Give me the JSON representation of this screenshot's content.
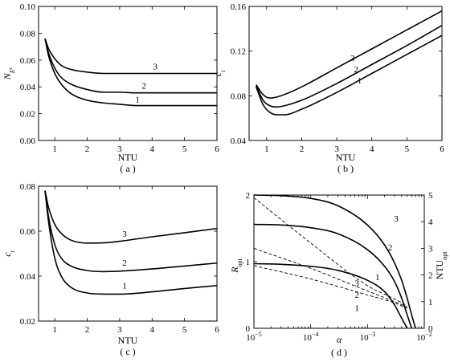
{
  "chart_data": [
    {
      "panel": "(a)",
      "type": "line",
      "xlabel": "NTU",
      "ylabel": "N",
      "ylabel_sub": "E",
      "ylabel_subsub": "c",
      "xlim": [
        0.5,
        6
      ],
      "ylim": [
        0,
        0.1
      ],
      "xticks": [
        1,
        2,
        3,
        4,
        5,
        6
      ],
      "yticks": [
        0,
        0.02,
        0.04,
        0.06,
        0.08,
        0.1
      ],
      "ytick_labels": [
        "0.00",
        "0.02",
        "0.04",
        "0.06",
        "0.08",
        "0.10"
      ],
      "series": [
        {
          "name": "1",
          "x": [
            0.7,
            0.8,
            1.0,
            1.2,
            1.5,
            2.0,
            2.5,
            3.0,
            3.5,
            4.0,
            5.0,
            6.0
          ],
          "y": [
            0.076,
            0.064,
            0.05,
            0.042,
            0.035,
            0.03,
            0.028,
            0.027,
            0.026,
            0.026,
            0.026,
            0.026
          ]
        },
        {
          "name": "2",
          "x": [
            0.7,
            0.8,
            1.0,
            1.2,
            1.5,
            2.0,
            2.5,
            3.0,
            3.5,
            4.0,
            5.0,
            6.0
          ],
          "y": [
            0.076,
            0.066,
            0.054,
            0.047,
            0.042,
            0.038,
            0.036,
            0.036,
            0.0355,
            0.0355,
            0.0355,
            0.0355
          ]
        },
        {
          "name": "3",
          "x": [
            0.7,
            0.8,
            1.0,
            1.2,
            1.5,
            2.0,
            2.5,
            3.0,
            3.5,
            4.0,
            5.0,
            6.0
          ],
          "y": [
            0.076,
            0.069,
            0.061,
            0.056,
            0.053,
            0.051,
            0.05,
            0.05,
            0.05,
            0.05,
            0.05,
            0.05
          ]
        }
      ],
      "curve_labels": [
        {
          "text": "1",
          "x": 3.55,
          "y": 0.0285
        },
        {
          "text": "2",
          "x": 3.75,
          "y": 0.0385
        },
        {
          "text": "3",
          "x": 4.1,
          "y": 0.053
        }
      ],
      "caption": "( a )"
    },
    {
      "panel": "(b)",
      "type": "line",
      "xlabel": "NTU",
      "ylabel": "c",
      "ylabel_sub": "t",
      "xlim": [
        0.5,
        6
      ],
      "ylim": [
        0.04,
        0.16
      ],
      "xticks": [
        1,
        2,
        3,
        4,
        5,
        6
      ],
      "yticks": [
        0.04,
        0.08,
        0.12,
        0.16
      ],
      "ytick_labels": [
        "0.04",
        "0.08",
        "0.12",
        "0.16"
      ],
      "series": [
        {
          "name": "1",
          "x": [
            0.7,
            0.9,
            1.1,
            1.3,
            1.5,
            2.0,
            3.0,
            4.0,
            5.0,
            6.0
          ],
          "y": [
            0.088,
            0.072,
            0.065,
            0.063,
            0.063,
            0.068,
            0.083,
            0.1,
            0.117,
            0.134
          ]
        },
        {
          "name": "2",
          "x": [
            0.7,
            0.9,
            1.1,
            1.3,
            1.5,
            2.0,
            3.0,
            4.0,
            5.0,
            6.0
          ],
          "y": [
            0.089,
            0.076,
            0.071,
            0.07,
            0.071,
            0.076,
            0.091,
            0.108,
            0.125,
            0.143
          ]
        },
        {
          "name": "3",
          "x": [
            0.7,
            0.9,
            1.1,
            1.3,
            1.5,
            2.0,
            3.0,
            4.0,
            5.0,
            6.0
          ],
          "y": [
            0.09,
            0.081,
            0.078,
            0.079,
            0.081,
            0.088,
            0.105,
            0.122,
            0.139,
            0.156
          ]
        }
      ],
      "curve_labels": [
        {
          "text": "1",
          "x": 3.65,
          "y": 0.091
        },
        {
          "text": "2",
          "x": 3.55,
          "y": 0.101
        },
        {
          "text": "3",
          "x": 3.45,
          "y": 0.111
        }
      ],
      "caption": "( b )"
    },
    {
      "panel": "(c)",
      "type": "line",
      "xlabel": "NTU",
      "ylabel": "c",
      "ylabel_sub": "t",
      "xlim": [
        0.5,
        6
      ],
      "ylim": [
        0.02,
        0.08
      ],
      "xticks": [
        1,
        2,
        3,
        4,
        5,
        6
      ],
      "yticks": [
        0.02,
        0.04,
        0.06,
        0.08
      ],
      "ytick_labels": [
        "0.02",
        "0.04",
        "0.06",
        "0.08"
      ],
      "series": [
        {
          "name": "1",
          "x": [
            0.7,
            0.8,
            1.0,
            1.2,
            1.5,
            2.0,
            2.5,
            3.0,
            4.0,
            5.0,
            6.0
          ],
          "y": [
            0.078,
            0.065,
            0.048,
            0.04,
            0.035,
            0.0325,
            0.032,
            0.032,
            0.033,
            0.0345,
            0.0358
          ]
        },
        {
          "name": "2",
          "x": [
            0.7,
            0.8,
            1.0,
            1.2,
            1.5,
            2.0,
            2.5,
            3.0,
            4.0,
            5.0,
            6.0
          ],
          "y": [
            0.078,
            0.067,
            0.054,
            0.048,
            0.0445,
            0.0425,
            0.042,
            0.0422,
            0.0432,
            0.0445,
            0.0458
          ]
        },
        {
          "name": "3",
          "x": [
            0.7,
            0.8,
            1.0,
            1.2,
            1.5,
            2.0,
            2.5,
            3.0,
            4.0,
            5.0,
            6.0
          ],
          "y": [
            0.078,
            0.071,
            0.063,
            0.059,
            0.056,
            0.0547,
            0.0548,
            0.0555,
            0.0575,
            0.0593,
            0.0612
          ]
        }
      ],
      "curve_labels": [
        {
          "text": "1",
          "x": 3.15,
          "y": 0.0345
        },
        {
          "text": "2",
          "x": 3.15,
          "y": 0.0447
        },
        {
          "text": "3",
          "x": 3.15,
          "y": 0.0575
        }
      ],
      "caption": "( c )"
    },
    {
      "panel": "(d)",
      "type": "line",
      "xlabel": "α",
      "xscale": "log",
      "ylabel_left": "R",
      "ylabel_left_sub": "opt",
      "ylabel_right": "NTU",
      "ylabel_right_sub": "opt",
      "xlim": [
        1e-05,
        0.01
      ],
      "ylim_left": [
        0,
        2
      ],
      "ylim_right": [
        0,
        5
      ],
      "xticks": [
        1e-05,
        0.0001,
        0.001,
        0.01
      ],
      "xtick_labels": [
        {
          "base": "10",
          "exp": "−5"
        },
        {
          "base": "10",
          "exp": "−4"
        },
        {
          "base": "10",
          "exp": "−3"
        },
        {
          "base": "10",
          "exp": "−2"
        }
      ],
      "yticks_left": [
        0,
        1,
        2
      ],
      "yticks_right": [
        0,
        1,
        2,
        3,
        4,
        5
      ],
      "series": [
        {
          "name": "1",
          "axis": "left",
          "style": "solid",
          "x": [
            1e-05,
            3e-05,
            0.0001,
            0.0003,
            0.001,
            0.002,
            0.003,
            0.004,
            0.005
          ],
          "y": [
            0.97,
            0.96,
            0.93,
            0.87,
            0.72,
            0.55,
            0.35,
            0.15,
            0.0
          ]
        },
        {
          "name": "2",
          "axis": "left",
          "style": "solid",
          "x": [
            1e-05,
            3e-05,
            0.0001,
            0.0003,
            0.001,
            0.002,
            0.003,
            0.004,
            0.005,
            0.006
          ],
          "y": [
            1.56,
            1.55,
            1.51,
            1.42,
            1.18,
            0.93,
            0.7,
            0.45,
            0.2,
            0.0
          ]
        },
        {
          "name": "3",
          "axis": "left",
          "style": "solid",
          "x": [
            1e-05,
            3e-05,
            0.0001,
            0.0003,
            0.001,
            0.002,
            0.003,
            0.004,
            0.005,
            0.006,
            0.007
          ],
          "y": [
            2.0,
            1.99,
            1.95,
            1.84,
            1.55,
            1.25,
            0.98,
            0.72,
            0.45,
            0.2,
            0.0
          ]
        },
        {
          "name": "1",
          "axis": "right",
          "style": "dashed",
          "x": [
            1e-05,
            0.0001,
            0.001,
            0.003,
            0.005
          ],
          "y": [
            2.35,
            1.85,
            1.25,
            0.95,
            0.75
          ]
        },
        {
          "name": "2",
          "axis": "right",
          "style": "dashed",
          "x": [
            1e-05,
            0.0001,
            0.001,
            0.003,
            0.005
          ],
          "y": [
            3.0,
            2.25,
            1.4,
            1.0,
            0.8
          ]
        },
        {
          "name": "3",
          "axis": "right",
          "style": "dashed",
          "x": [
            1e-05,
            0.0001,
            0.001,
            0.003,
            0.005
          ],
          "y": [
            4.9,
            3.2,
            1.6,
            1.1,
            0.85
          ]
        }
      ],
      "curve_labels": [
        {
          "text": "1",
          "axis": "left",
          "x": 0.0015,
          "y": 0.72
        },
        {
          "text": "2",
          "axis": "left",
          "x": 0.0025,
          "y": 1.17
        },
        {
          "text": "3",
          "axis": "left",
          "x": 0.0032,
          "y": 1.6
        },
        {
          "text": "1",
          "axis": "left",
          "x": 0.00065,
          "y": 0.26
        },
        {
          "text": "2",
          "axis": "left",
          "x": 0.00065,
          "y": 0.46
        },
        {
          "text": "3",
          "axis": "left",
          "x": 0.00065,
          "y": 0.63
        }
      ],
      "caption": "( d )"
    }
  ]
}
